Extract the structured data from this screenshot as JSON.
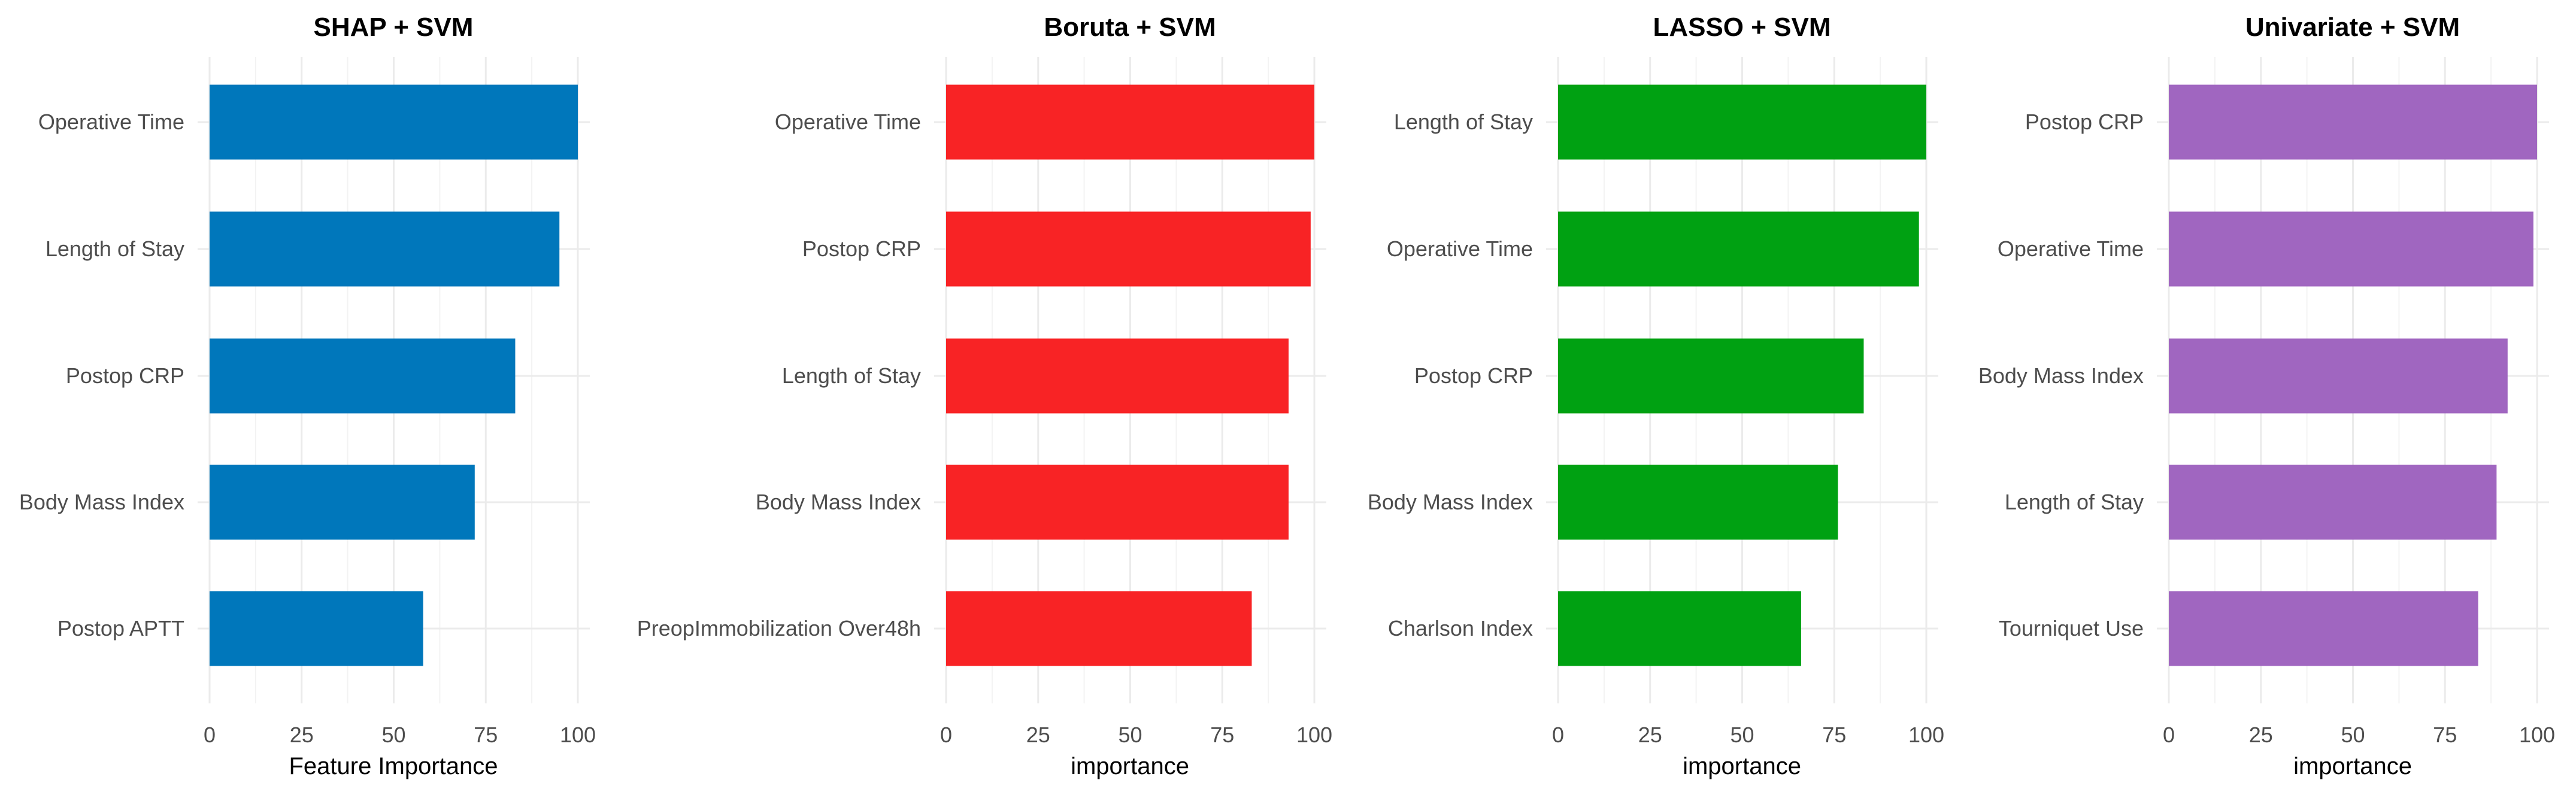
{
  "chart_data": [
    {
      "type": "bar",
      "orientation": "horizontal",
      "title": "SHAP + SVM",
      "xlabel": "Feature Importance",
      "categories": [
        "Operative Time",
        "Length of Stay",
        "Postop CRP",
        "Body Mass Index",
        "Postop APTT"
      ],
      "values": [
        100,
        95,
        83,
        72,
        58
      ],
      "xlim": [
        0,
        100
      ],
      "xticks": [
        "0",
        "25",
        "50",
        "75",
        "100"
      ],
      "color": "#0077BB",
      "grid": true
    },
    {
      "type": "bar",
      "orientation": "horizontal",
      "title": "Boruta + SVM",
      "xlabel": "importance",
      "categories": [
        "Operative Time",
        "Postop CRP",
        "Length of Stay",
        "Body Mass Index",
        "PreopImmobilization Over48h"
      ],
      "values": [
        100,
        99,
        93,
        93,
        83
      ],
      "xlim": [
        0,
        100
      ],
      "xticks": [
        "0",
        "25",
        "50",
        "75",
        "100"
      ],
      "color": "#F82325",
      "grid": true
    },
    {
      "type": "bar",
      "orientation": "horizontal",
      "title": "LASSO + SVM",
      "xlabel": "importance",
      "categories": [
        "Length of Stay",
        "Operative Time",
        "Postop CRP",
        "Body Mass Index",
        "Charlson Index"
      ],
      "values": [
        100,
        98,
        83,
        76,
        66
      ],
      "xlim": [
        0,
        100
      ],
      "xticks": [
        "0",
        "25",
        "50",
        "75",
        "100"
      ],
      "color": "#00A112",
      "grid": true
    },
    {
      "type": "bar",
      "orientation": "horizontal",
      "title": "Univariate + SVM",
      "xlabel": "importance",
      "categories": [
        "Postop CRP",
        "Operative Time",
        "Body Mass Index",
        "Length of Stay",
        "Tourniquet Use"
      ],
      "values": [
        100,
        99,
        92,
        89,
        84
      ],
      "xlim": [
        0,
        100
      ],
      "xticks": [
        "0",
        "25",
        "50",
        "75",
        "100"
      ],
      "color": "#A066C0",
      "grid": true
    }
  ]
}
